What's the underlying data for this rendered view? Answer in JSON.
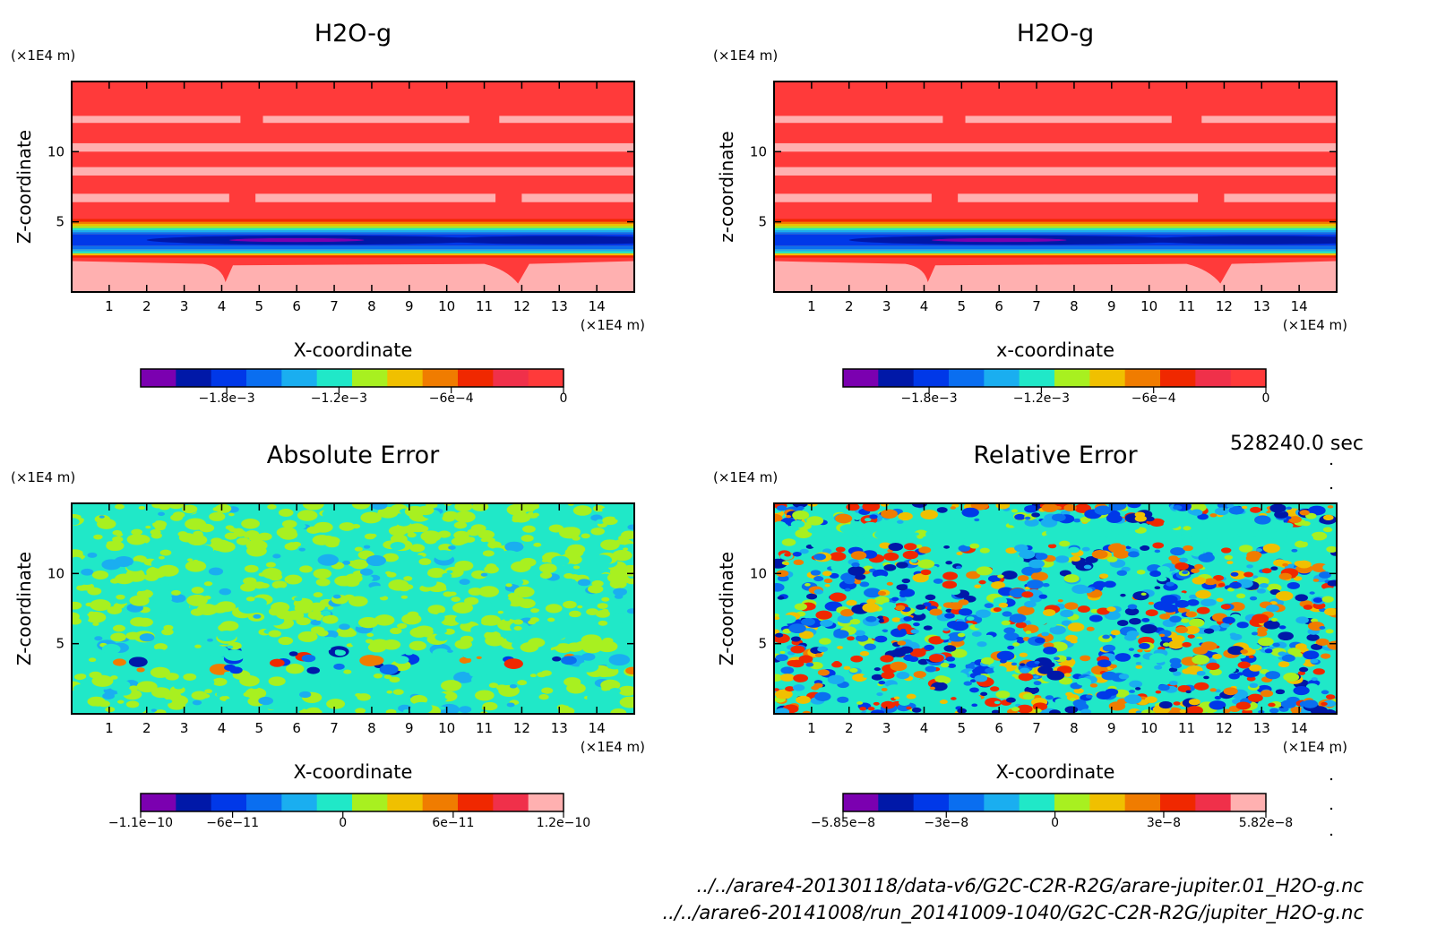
{
  "panels": [
    {
      "id": "h2o-a",
      "title": "H2O-g",
      "xlabel": "X-coordinate",
      "ylabel": "Z-coordinate",
      "xunit": "(×1E4 m)",
      "yunit": "(×1E4 m)",
      "pattern": "field",
      "colorbar": {
        "colors": [
          "#7b00b0",
          "#0018a8",
          "#0038e8",
          "#0a6ef0",
          "#1aaef0",
          "#20e8c8",
          "#a8f020",
          "#f0c000",
          "#f07c00",
          "#f02800",
          "#f0304a",
          "#ff3a3a"
        ],
        "ticks": [
          {
            "label": "−1.8e−3",
            "value": -0.0018
          },
          {
            "label": "−1.2e−3",
            "value": -0.0012
          },
          {
            "label": "−6e−4",
            "value": -0.0006
          },
          {
            "label": "0",
            "value": 0
          }
        ],
        "range": [
          -0.00226,
          0
        ]
      }
    },
    {
      "id": "h2o-b",
      "title": "H2O-g",
      "xlabel": "x-coordinate",
      "ylabel": "z-coordinate",
      "xunit": "(×1E4 m)",
      "yunit": "(×1E4 m)",
      "pattern": "field",
      "colorbar": {
        "colors": [
          "#7b00b0",
          "#0018a8",
          "#0038e8",
          "#0a6ef0",
          "#1aaef0",
          "#20e8c8",
          "#a8f020",
          "#f0c000",
          "#f07c00",
          "#f02800",
          "#f0304a",
          "#ff3a3a"
        ],
        "ticks": [
          {
            "label": "−1.8e−3",
            "value": -0.0018
          },
          {
            "label": "−1.2e−3",
            "value": -0.0012
          },
          {
            "label": "−6e−4",
            "value": -0.0006
          },
          {
            "label": "0",
            "value": 0
          }
        ],
        "range": [
          -0.00226,
          0
        ]
      }
    },
    {
      "id": "abs-error",
      "title": "Absolute Error",
      "xlabel": "X-coordinate",
      "ylabel": "Z-coordinate",
      "xunit": "(×1E4 m)",
      "yunit": "(×1E4 m)",
      "pattern": "abs",
      "colorbar": {
        "colors": [
          "#7b00b0",
          "#0018a8",
          "#0038e8",
          "#0a6ef0",
          "#1aaef0",
          "#20e8c8",
          "#a8f020",
          "#f0c000",
          "#f07c00",
          "#f02800",
          "#f0304a",
          "#ffb0b0"
        ],
        "ticks": [
          {
            "label": "−1.1e−10",
            "value": -1.1e-10
          },
          {
            "label": "−6e−11",
            "value": -6e-11
          },
          {
            "label": "0",
            "value": 0
          },
          {
            "label": "6e−11",
            "value": 6e-11
          },
          {
            "label": "1.2e−10",
            "value": 1.2e-10
          }
        ],
        "range": [
          -1.1e-10,
          1.2e-10
        ]
      }
    },
    {
      "id": "rel-error",
      "title": "Relative Error",
      "xlabel": "X-coordinate",
      "ylabel": "Z-coordinate",
      "xunit": "(×1E4 m)",
      "yunit": "(×1E4 m)",
      "pattern": "rel",
      "colorbar": {
        "colors": [
          "#7b00b0",
          "#0018a8",
          "#0038e8",
          "#0a6ef0",
          "#1aaef0",
          "#20e8c8",
          "#a8f020",
          "#f0c000",
          "#f07c00",
          "#f02800",
          "#f0304a",
          "#ffb0b0"
        ],
        "ticks": [
          {
            "label": "−5.85e−8",
            "value": -5.85e-08
          },
          {
            "label": "−3e−8",
            "value": -3e-08
          },
          {
            "label": "0",
            "value": 0
          },
          {
            "label": "3e−8",
            "value": 3e-08
          },
          {
            "label": "5.82e−8",
            "value": 5.82e-08
          }
        ],
        "range": [
          -5.85e-08,
          5.82e-08
        ]
      }
    }
  ],
  "axes": {
    "x_ticks": [
      1,
      2,
      3,
      4,
      5,
      6,
      7,
      8,
      9,
      10,
      11,
      12,
      13,
      14
    ],
    "x_range": [
      0,
      15
    ],
    "y_ticks": [
      5,
      10
    ],
    "y_range": [
      0,
      15
    ]
  },
  "time_label": "528240.0 sec",
  "file_paths": [
    "../../arare4-20130118/data-v6/G2C-C2R-R2G/arare-jupiter.01_H2O-g.nc",
    "../../arare6-20141008/run_20141009-1040/G2C-C2R-R2G/jupiter_H2O-g.nc"
  ],
  "chart_data": [
    {
      "type": "heatmap",
      "title": "H2O-g",
      "xlabel": "X-coordinate",
      "ylabel": "Z-coordinate",
      "xlim": [
        0,
        15
      ],
      "ylim": [
        0,
        15
      ],
      "colorbar_ticks": [
        -0.0018,
        -0.0012,
        -0.0006,
        0
      ]
    },
    {
      "type": "heatmap",
      "title": "H2O-g",
      "xlabel": "x-coordinate",
      "ylabel": "z-coordinate",
      "xlim": [
        0,
        15
      ],
      "ylim": [
        0,
        15
      ],
      "colorbar_ticks": [
        -0.0018,
        -0.0012,
        -0.0006,
        0
      ]
    },
    {
      "type": "heatmap",
      "title": "Absolute Error",
      "xlabel": "X-coordinate",
      "ylabel": "Z-coordinate",
      "xlim": [
        0,
        15
      ],
      "ylim": [
        0,
        15
      ],
      "colorbar_ticks": [
        -1.1e-10,
        -6e-11,
        0,
        6e-11,
        1.2e-10
      ]
    },
    {
      "type": "heatmap",
      "title": "Relative Error",
      "xlabel": "X-coordinate",
      "ylabel": "Z-coordinate",
      "xlim": [
        0,
        15
      ],
      "ylim": [
        0,
        15
      ],
      "colorbar_ticks": [
        -5.85e-08,
        -3e-08,
        0,
        3e-08,
        5.82e-08
      ]
    }
  ]
}
